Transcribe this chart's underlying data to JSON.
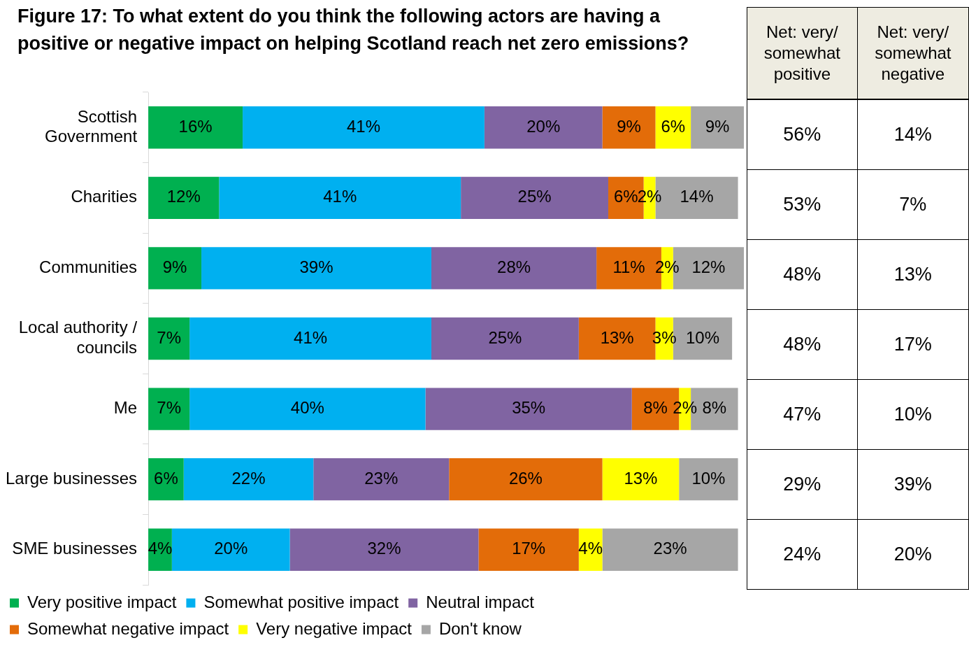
{
  "chart_data": [
    {
      "type": "bar",
      "title": "Figure 17: To what extent do you think the following actors are having a positive or negative impact on helping Scotland reach net zero emissions?",
      "orientation": "horizontal",
      "stacked": true,
      "categories": [
        "Scottish Government",
        "Charities",
        "Communities",
        "Local authority / councils",
        "Me",
        "Large businesses",
        "SME businesses"
      ],
      "tick_labels": "y",
      "legend": "bottom",
      "series": [
        {
          "name": "Very positive impact",
          "color": "#00b050",
          "values": [
            16,
            12,
            9,
            7,
            7,
            6,
            4
          ],
          "value_labels": [
            "16%",
            "12%",
            "9%",
            "7%",
            "7%",
            "6%",
            "4%"
          ]
        },
        {
          "name": "Somewhat positive impact",
          "color": "#00b0f0",
          "values": [
            41,
            41,
            39,
            41,
            40,
            22,
            20
          ],
          "value_labels": [
            "41%",
            "41%",
            "39%",
            "41%",
            "40%",
            "22%",
            "20%"
          ]
        },
        {
          "name": "Neutral impact",
          "color": "#8064a2",
          "values": [
            20,
            25,
            28,
            25,
            35,
            23,
            32
          ],
          "value_labels": [
            "20%",
            "25%",
            "28%",
            "25%",
            "35%",
            "23%",
            "32%"
          ]
        },
        {
          "name": "Somewhat negative impact",
          "color": "#e36c09",
          "values": [
            9,
            6,
            11,
            13,
            8,
            26,
            17
          ],
          "value_labels": [
            "9%",
            "6%",
            "11%",
            "13%",
            "8%",
            "26%",
            "17%"
          ]
        },
        {
          "name": "Very negative impact",
          "color": "#ffff00",
          "values": [
            6,
            2,
            2,
            3,
            2,
            13,
            4
          ],
          "value_labels": [
            "6%",
            "2%",
            "2%",
            "3%",
            "2%",
            "13%",
            "4%"
          ]
        },
        {
          "name": "Don't know",
          "color": "#a6a6a6",
          "values": [
            9,
            14,
            12,
            10,
            8,
            10,
            23
          ],
          "value_labels": [
            "9%",
            "14%",
            "12%",
            "10%",
            "8%",
            "10%",
            "23%"
          ]
        }
      ]
    },
    {
      "type": "other",
      "annotations": [
        "Net: very/ somewhat positive",
        "Net: very/ somewhat negative",
        "56%",
        "14%",
        "53%",
        "7%",
        "48%",
        "13%",
        "48%",
        "17%",
        "47%",
        "10%",
        "29%",
        "39%",
        "24%",
        "20%"
      ]
    }
  ]
}
